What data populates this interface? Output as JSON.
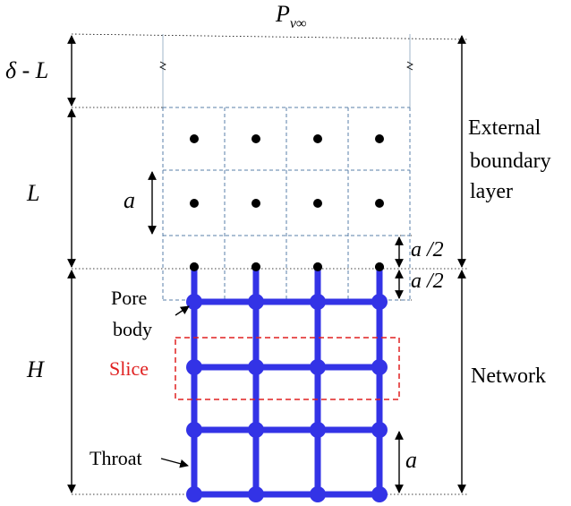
{
  "labels": {
    "top_pressure": "P",
    "top_pressure_sub": "v∞",
    "delta_minus_l": "δ - L",
    "l": "L",
    "a_vertical": "a",
    "a_half_1": "a /2",
    "a_half_2": "a /2",
    "h": "H",
    "pore_body_1": "Pore",
    "pore_body_2": "body",
    "slice": "Slice",
    "throat": "Throat",
    "a_network": "a",
    "external_1": "External",
    "external_2": "boundary",
    "external_3": "layer",
    "network": "Network"
  },
  "colors": {
    "network_blue": "#3333e6",
    "slice_red": "#e02020",
    "grid_dash": "#5a7fa8",
    "text": "#000000"
  }
}
